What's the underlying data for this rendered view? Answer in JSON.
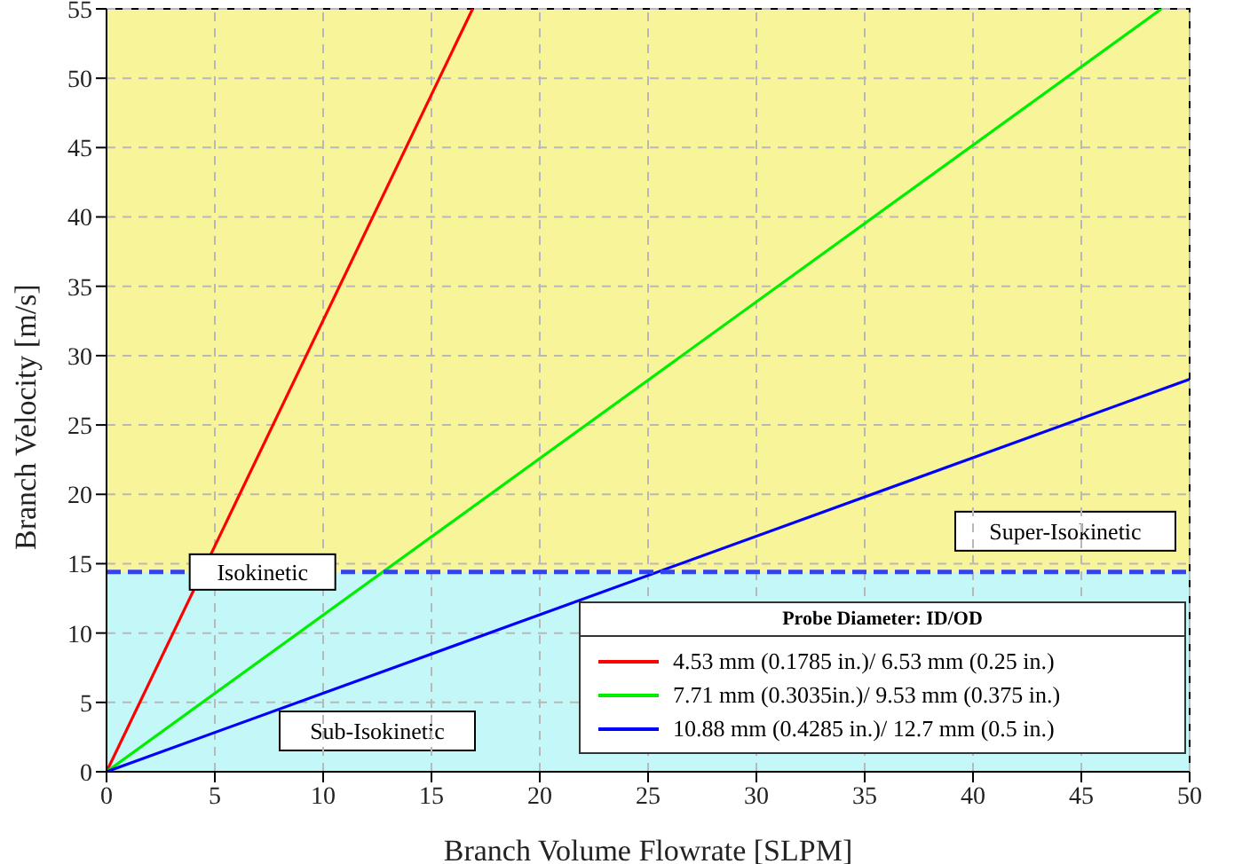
{
  "chart_data": {
    "type": "line",
    "xlabel": "Branch Volume Flowrate [SLPM]",
    "ylabel": "Branch Velocity [m/s]",
    "legend_title": "Probe Diameter: ID/OD",
    "series": [
      {
        "name": "4.53 mm (0.1785 in.)/ 6.53 mm (0.25 in.)",
        "color": "#ff0000",
        "x": [
          0,
          16.9
        ],
        "values": [
          0,
          55
        ]
      },
      {
        "name": "7.71 mm (0.3035in.)/ 9.53 mm (0.375 in.)",
        "color": "#00ee00",
        "x": [
          0,
          48.7
        ],
        "values": [
          0,
          55
        ]
      },
      {
        "name": "10.88 mm (0.4285 in.)/ 12.7 mm (0.5 in.)",
        "color": "#0000ff",
        "x": [
          0,
          50
        ],
        "values": [
          0,
          28.3
        ]
      }
    ],
    "xlim": [
      0,
      50
    ],
    "xticks": [
      0,
      5,
      10,
      15,
      20,
      25,
      30,
      35,
      40,
      45,
      50
    ],
    "ylim": [
      0,
      55
    ],
    "yticks": [
      0,
      5,
      10,
      15,
      20,
      25,
      30,
      35,
      40,
      45,
      50,
      55
    ],
    "ref_lines": [
      {
        "axis": "y",
        "value": 14.4,
        "color": "#3344ee",
        "line_style": "dashed"
      }
    ],
    "bands": [
      {
        "axis": "y",
        "from": 0,
        "to": 14.4,
        "color": "#c4f8f8",
        "label": "Sub-Isokinetic"
      },
      {
        "axis": "y",
        "from": 14.4,
        "to": 55,
        "color": "#f8f49a",
        "label": "Super-Isokinetic"
      }
    ],
    "annotations": [
      {
        "text": "Isokinetic",
        "x": 7.2,
        "y": 14.4
      }
    ],
    "grid": true,
    "legend": "bottom right",
    "line_style": "solid",
    "marker": "none"
  }
}
